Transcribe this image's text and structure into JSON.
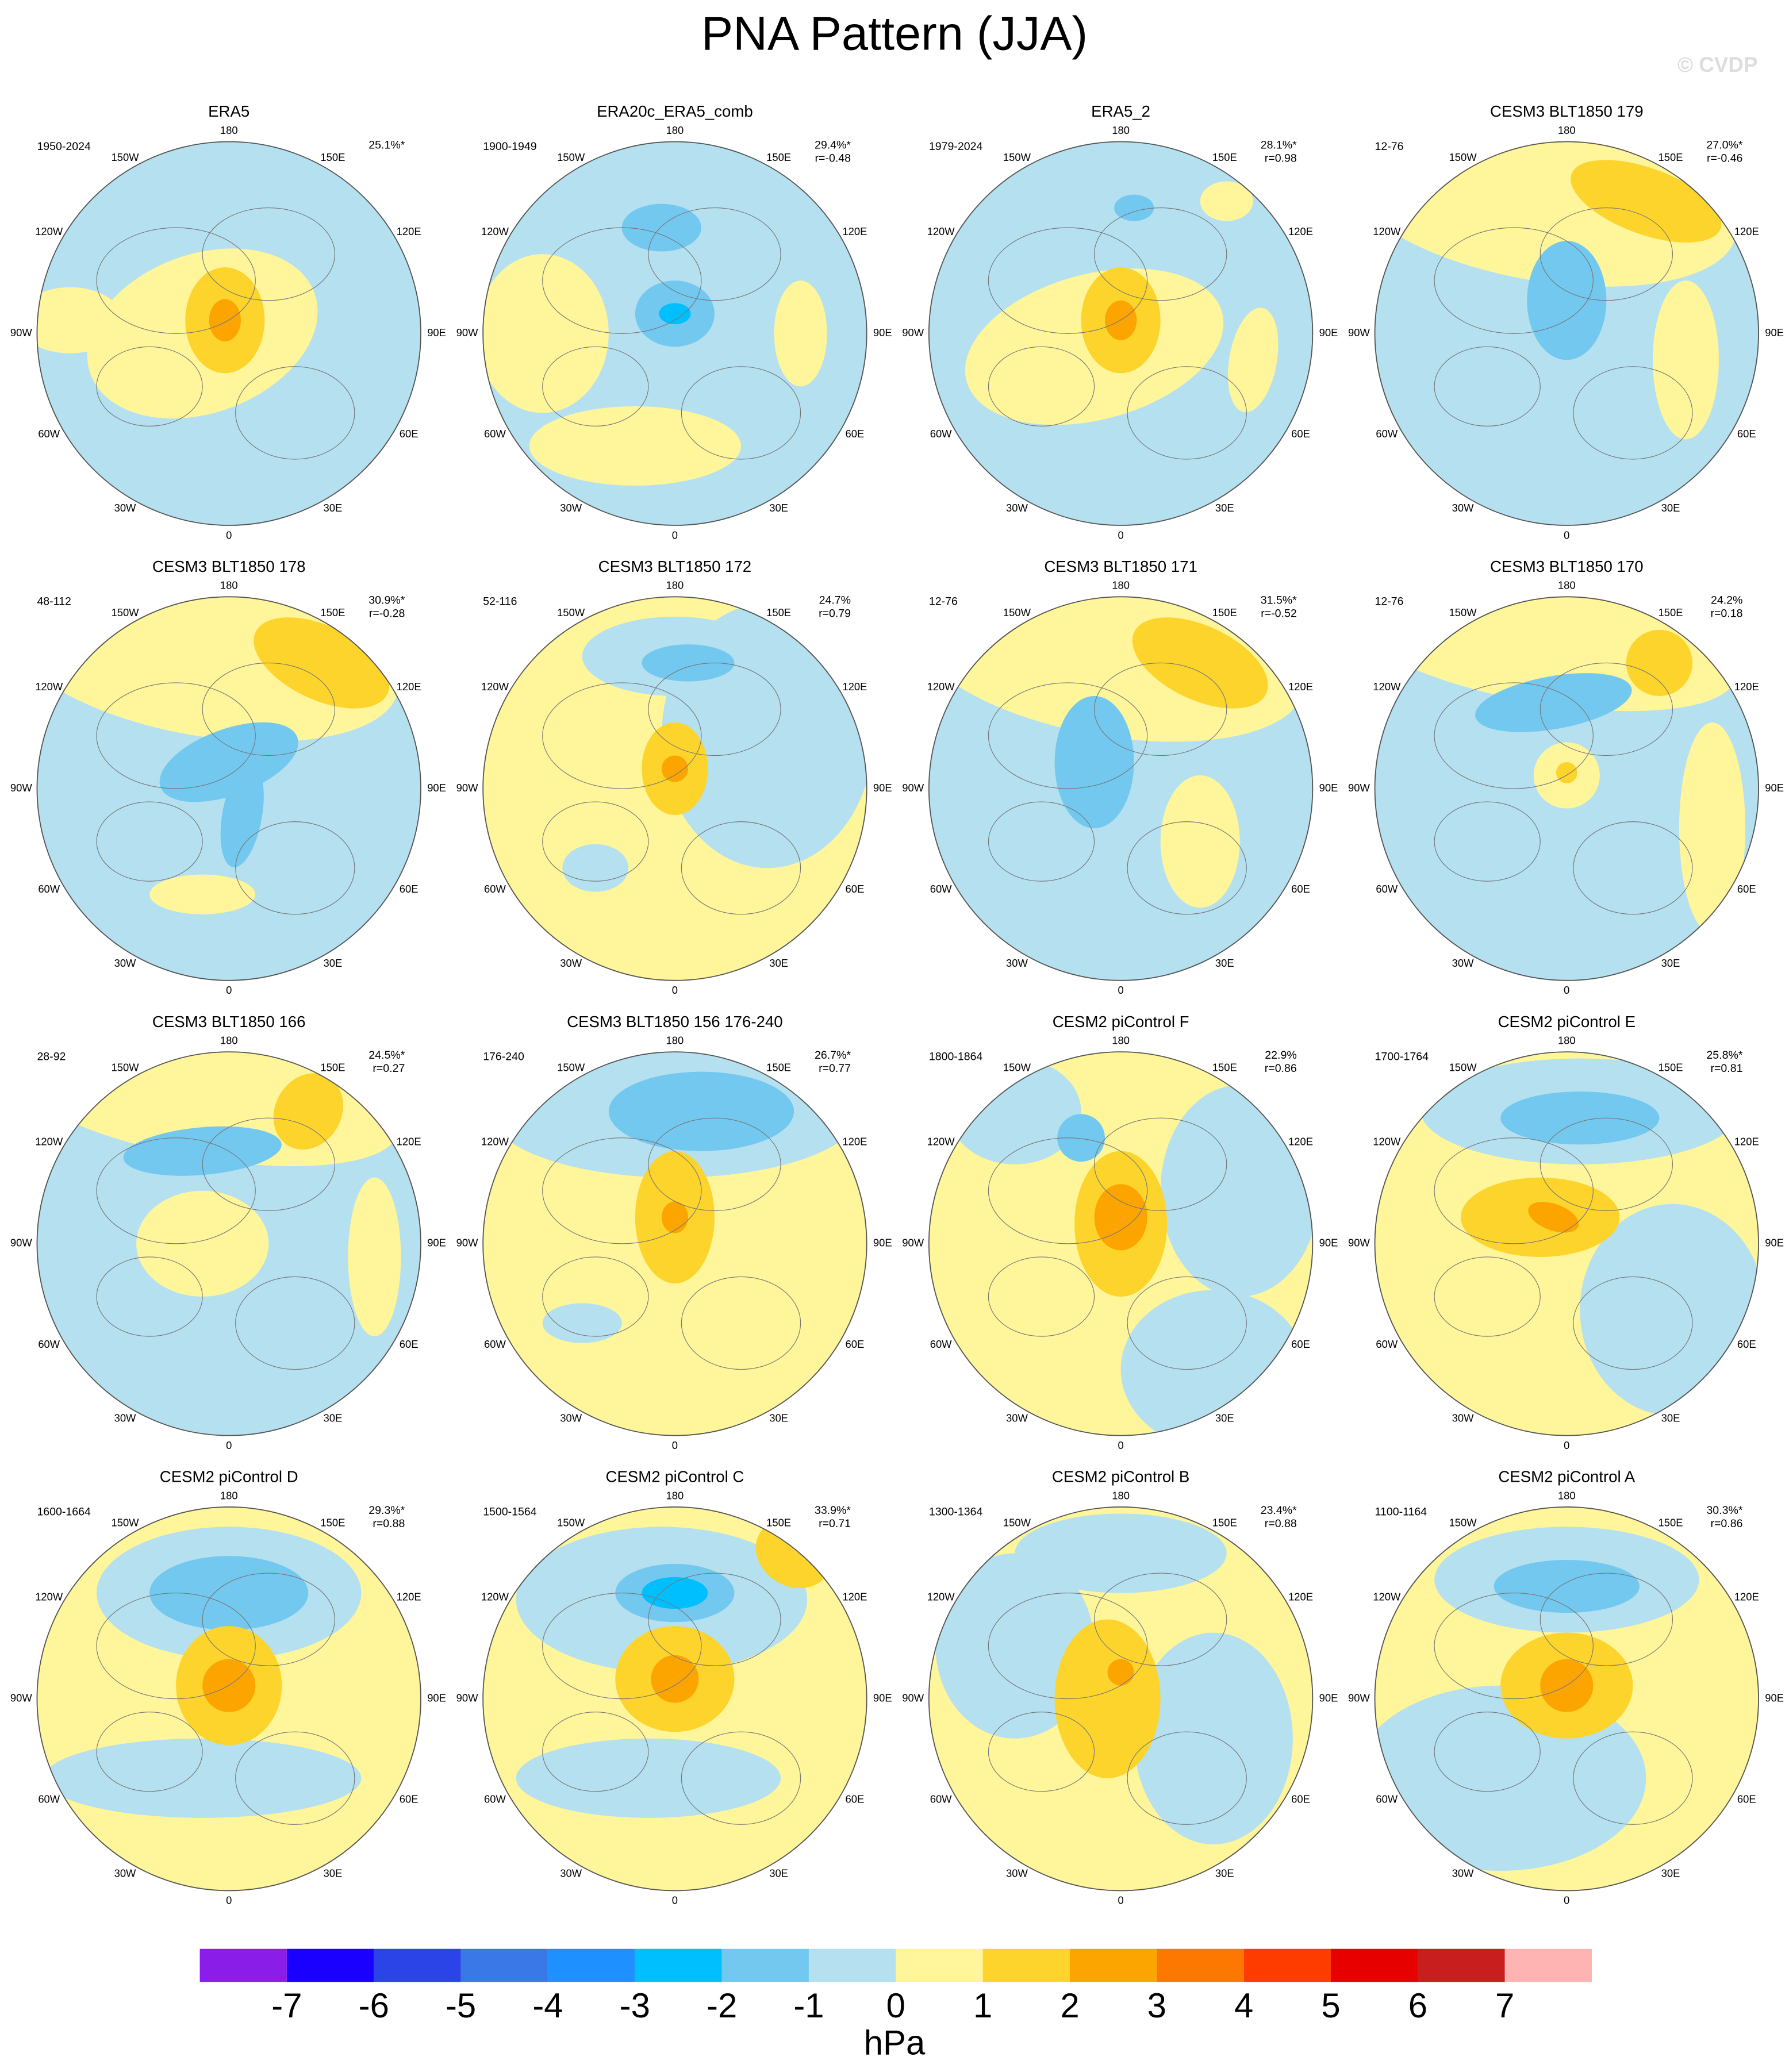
{
  "title": "PNA Pattern (JJA)",
  "watermark": "© CVDP",
  "longitude_labels": [
    "180",
    "150E",
    "120E",
    "90E",
    "60E",
    "30E",
    "0",
    "30W",
    "60W",
    "90W",
    "120W",
    "150W"
  ],
  "panels": [
    {
      "title": "ERA5",
      "period": "1950-2024",
      "variance": "25.1%*"
    },
    {
      "title": "ERA20c_ERA5_comb",
      "period": "1900-1949",
      "variance": "29.4%*",
      "r": "r=-0.48"
    },
    {
      "title": "ERA5_2",
      "period": "1979-2024",
      "variance": "28.1%*",
      "r": "r=0.98"
    },
    {
      "title": "CESM3 BLT1850 179",
      "period": "12-76",
      "variance": "27.0%*",
      "r": "r=-0.46"
    },
    {
      "title": "CESM3 BLT1850 178",
      "period": "48-112",
      "variance": "30.9%*",
      "r": "r=-0.28"
    },
    {
      "title": "CESM3 BLT1850 172",
      "period": "52-116",
      "variance": "24.7%",
      "r": "r=0.79"
    },
    {
      "title": "CESM3 BLT1850 171",
      "period": "12-76",
      "variance": "31.5%*",
      "r": "r=-0.52"
    },
    {
      "title": "CESM3 BLT1850 170",
      "period": "12-76",
      "variance": "24.2%",
      "r": "r=0.18"
    },
    {
      "title": "CESM3 BLT1850 166",
      "period": "28-92",
      "variance": "24.5%*",
      "r": "r=0.27"
    },
    {
      "title": "CESM3 BLT1850 156 176-240",
      "period": "176-240",
      "variance": "26.7%*",
      "r": "r=0.77"
    },
    {
      "title": "CESM2 piControl F",
      "period": "1800-1864",
      "variance": "22.9%",
      "r": "r=0.86"
    },
    {
      "title": "CESM2 piControl E",
      "period": "1700-1764",
      "variance": "25.8%*",
      "r": "r=0.81"
    },
    {
      "title": "CESM2 piControl D",
      "period": "1600-1664",
      "variance": "29.3%*",
      "r": "r=0.88"
    },
    {
      "title": "CESM2 piControl C",
      "period": "1500-1564",
      "variance": "33.9%*",
      "r": "r=0.71"
    },
    {
      "title": "CESM2 piControl B",
      "period": "1300-1364",
      "variance": "23.4%*",
      "r": "r=0.88"
    },
    {
      "title": "CESM2 piControl A",
      "period": "1100-1164",
      "variance": "30.3%*",
      "r": "r=0.86"
    }
  ],
  "colorbar": {
    "levels": [
      -7,
      -6,
      -5,
      -4,
      -3,
      -2,
      -1,
      0,
      1,
      2,
      3,
      4,
      5,
      6,
      7
    ],
    "colors": [
      "#8a1ee8",
      "#1a00ff",
      "#2a44e8",
      "#3a78e8",
      "#1e90ff",
      "#00bfff",
      "#73c8f0",
      "#b4e0f0",
      "#fff59a",
      "#fcd42c",
      "#fca500",
      "#fc7800",
      "#ff3c00",
      "#e60000",
      "#c81e1e",
      "#ffb4b4"
    ],
    "unit": "hPa"
  }
}
